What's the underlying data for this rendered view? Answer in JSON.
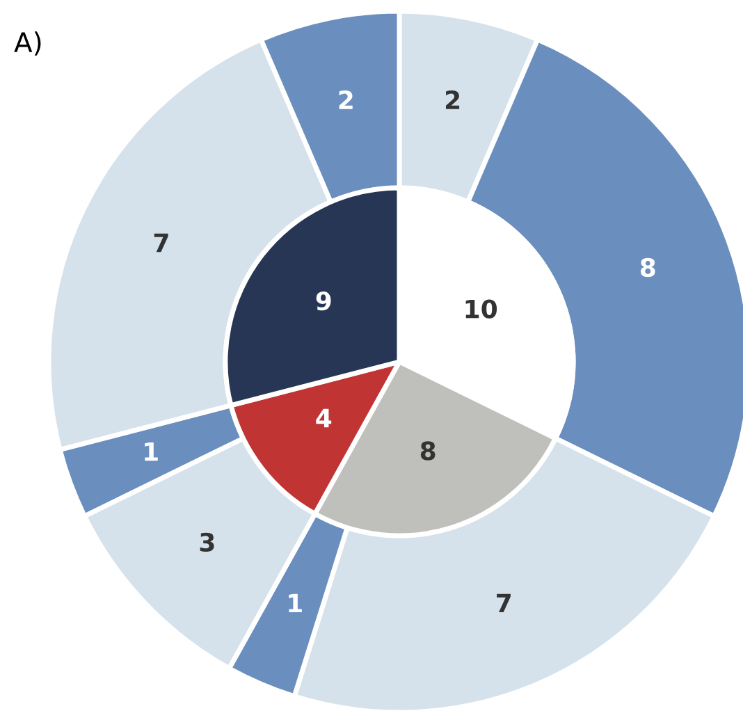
{
  "chart_data": {
    "type": "donut",
    "title": "A)",
    "data_labels": true,
    "series": [
      {
        "type": "pie",
        "values": [
          10,
          8,
          4,
          9
        ],
        "colors": [
          "#ffffff",
          "#bfbfbb",
          "#c03434",
          "#283655"
        ]
      },
      {
        "values": [
          2,
          8,
          7,
          1,
          3,
          1,
          7,
          2
        ],
        "colors": [
          "#d6e2eb",
          "#6a8fbe",
          "#d6e2eb",
          "#6a8fbe",
          "#d6e2eb",
          "#6a8fbe",
          "#d6e2eb",
          "#6a8fbe"
        ]
      }
    ]
  }
}
